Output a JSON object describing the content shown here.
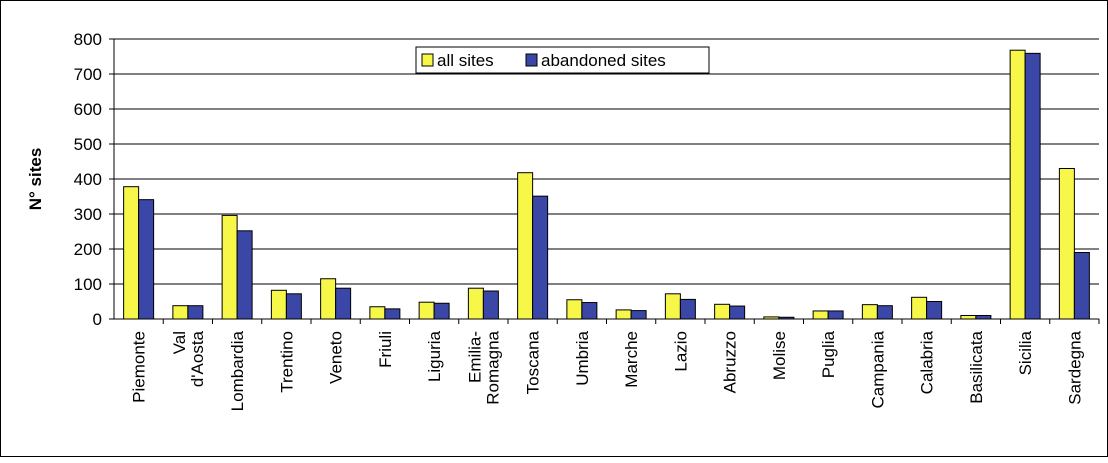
{
  "chart_data": {
    "type": "bar",
    "title": "",
    "xlabel": "",
    "ylabel": "N° sites",
    "ylim": [
      0,
      800
    ],
    "yticks": [
      0,
      100,
      200,
      300,
      400,
      500,
      600,
      700,
      800
    ],
    "grid": true,
    "legend_position": "top-center",
    "categories": [
      "Piemonte",
      "Val d'Aosta",
      "Lombardia",
      "Trentino",
      "Veneto",
      "Friuli",
      "Liguria",
      "Emilia-Romagna",
      "Toscana",
      "Umbria",
      "Marche",
      "Lazio",
      "Abruzzo",
      "Molise",
      "Puglia",
      "Campania",
      "Calabria",
      "Basilicata",
      "Sicilia",
      "Sardegna"
    ],
    "category_label_lines": [
      [
        "Piemonte"
      ],
      [
        "Val",
        "d'Aosta"
      ],
      [
        "Lombardia"
      ],
      [
        "Trentino"
      ],
      [
        "Veneto"
      ],
      [
        "Friuli"
      ],
      [
        "Liguria"
      ],
      [
        "Emilia-",
        "Romagna"
      ],
      [
        "Toscana"
      ],
      [
        "Umbria"
      ],
      [
        "Marche"
      ],
      [
        "Lazio"
      ],
      [
        "Abruzzo"
      ],
      [
        "Molise"
      ],
      [
        "Puglia"
      ],
      [
        "Campania"
      ],
      [
        "Calabria"
      ],
      [
        "Basilicata"
      ],
      [
        "Sicilia"
      ],
      [
        "Sardegna"
      ]
    ],
    "series": [
      {
        "name": "all sites",
        "color": "#f7f74a",
        "values": [
          378,
          38,
          296,
          82,
          115,
          35,
          48,
          88,
          418,
          55,
          26,
          72,
          42,
          6,
          23,
          41,
          62,
          10,
          768,
          430
        ]
      },
      {
        "name": "abandoned sites",
        "color": "#3a47a7",
        "values": [
          341,
          38,
          252,
          72,
          88,
          29,
          45,
          80,
          351,
          47,
          24,
          56,
          37,
          5,
          23,
          38,
          50,
          10,
          759,
          190
        ]
      }
    ]
  }
}
